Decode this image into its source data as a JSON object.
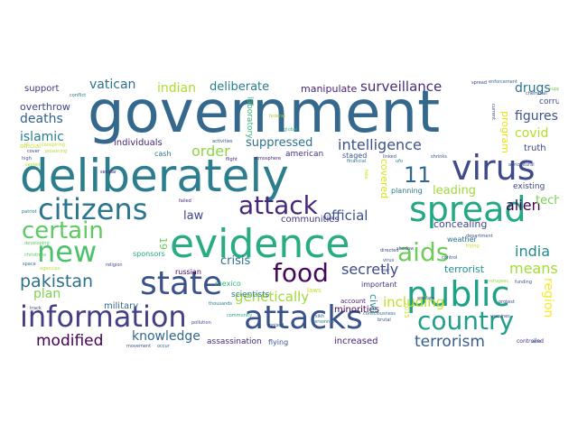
{
  "words": [
    {
      "text": "government",
      "color": "#35688d"
    },
    {
      "text": "deliberately",
      "color": "#2c7e8e"
    },
    {
      "text": "evidence",
      "color": "#27ad81"
    },
    {
      "text": "attacks",
      "color": "#3a528b"
    },
    {
      "text": "information",
      "color": "#433e85"
    },
    {
      "text": "state",
      "color": "#3b528b"
    },
    {
      "text": "public",
      "color": "#1fa187"
    },
    {
      "text": "virus",
      "color": "#3e4a89"
    },
    {
      "text": "spread",
      "color": "#22a884"
    },
    {
      "text": "citizens",
      "color": "#2a768e"
    },
    {
      "text": "attack",
      "color": "#482878"
    },
    {
      "text": "new",
      "color": "#4cc26c"
    },
    {
      "text": "certain",
      "color": "#5ec962"
    },
    {
      "text": "country",
      "color": "#1f9e89"
    },
    {
      "text": "food",
      "color": "#46085c"
    },
    {
      "text": "aids",
      "color": "#6ccd5a"
    },
    {
      "text": "11",
      "color": "#31688e"
    },
    {
      "text": "pakistan",
      "color": "#2d708e"
    },
    {
      "text": "terrorism",
      "color": "#365c8d"
    },
    {
      "text": "modified",
      "color": "#440154"
    },
    {
      "text": "knowledge",
      "color": "#31688e"
    },
    {
      "text": "genetically",
      "color": "#a0da39"
    },
    {
      "text": "secretly",
      "color": "#3e4989"
    },
    {
      "text": "india",
      "color": "#238a8d"
    },
    {
      "text": "means",
      "color": "#a5db36"
    },
    {
      "text": "alien",
      "color": "#440154"
    },
    {
      "text": "intelligence",
      "color": "#3b528b"
    },
    {
      "text": "surveillance",
      "color": "#472d7b"
    },
    {
      "text": "deliberate",
      "color": "#277f8e"
    },
    {
      "text": "vatican",
      "color": "#2c728e"
    },
    {
      "text": "indian",
      "color": "#addc30"
    },
    {
      "text": "manipulate",
      "color": "#482475"
    },
    {
      "text": "drugs",
      "color": "#2d708e"
    },
    {
      "text": "figures",
      "color": "#3b528b"
    },
    {
      "text": "covid",
      "color": "#b5de2b"
    },
    {
      "text": "deaths",
      "color": "#33638d"
    },
    {
      "text": "islamic",
      "color": "#287c8e"
    },
    {
      "text": "overthrow",
      "color": "#3e4989"
    },
    {
      "text": "support",
      "color": "#443a83"
    },
    {
      "text": "order",
      "color": "#8fd744"
    },
    {
      "text": "suppressed",
      "color": "#2c728e"
    },
    {
      "text": "individuals",
      "color": "#482576"
    },
    {
      "text": "official",
      "color": "#3b528b"
    },
    {
      "text": "law",
      "color": "#414487"
    },
    {
      "text": "crisis",
      "color": "#21918c"
    },
    {
      "text": "leading",
      "color": "#2c728e"
    },
    {
      "text": "concealing",
      "color": "#9fda3a"
    },
    {
      "text": "technology",
      "color": "#3f4788"
    },
    {
      "text": "plan",
      "color": "#7ad151"
    },
    {
      "text": "terrorist",
      "color": "#7fd34e"
    },
    {
      "text": "communities",
      "color": "#21908d"
    },
    {
      "text": "region",
      "color": "#453882"
    },
    {
      "text": "including",
      "color": "#fde725"
    },
    {
      "text": "19",
      "color": "#c2df23"
    },
    {
      "text": "military",
      "color": "#6ece58"
    },
    {
      "text": "assassination",
      "color": "#31688e"
    },
    {
      "text": "flying",
      "color": "#482979"
    },
    {
      "text": "increased",
      "color": "#3b528b"
    },
    {
      "text": "minorities",
      "color": "#482173"
    },
    {
      "text": "civil",
      "color": "#440154"
    },
    {
      "text": "truth",
      "color": "#21918c"
    },
    {
      "text": "corruption",
      "color": "#3f4788"
    },
    {
      "text": "program",
      "color": "#3e4a89"
    },
    {
      "text": "american",
      "color": "#e5e419"
    },
    {
      "text": "staged",
      "color": "#46327e"
    },
    {
      "text": "covered",
      "color": "#3b528b"
    },
    {
      "text": "planning",
      "color": "#d8e219"
    },
    {
      "text": "existing",
      "color": "#287c8e"
    },
    {
      "text": "russian",
      "color": "#3f4788"
    },
    {
      "text": "mexico",
      "color": "#440154"
    },
    {
      "text": "scientists",
      "color": "#35b779"
    },
    {
      "text": "sponsors",
      "color": "#2a788e"
    },
    {
      "text": "cash",
      "color": "#22a884"
    },
    {
      "text": "2015",
      "color": "#2a788e"
    },
    {
      "text": "laboratory",
      "color": "#c8e020"
    },
    {
      "text": "official",
      "color": "#35b779"
    },
    {
      "text": "important",
      "color": "#c0df25"
    },
    {
      "text": "laws",
      "color": "#46327e"
    },
    {
      "text": "weather",
      "color": "#bddf26"
    },
    {
      "text": "account",
      "color": "#2c728e"
    },
    {
      "text": "conspiring",
      "color": "#482071"
    },
    {
      "text": "poisoning",
      "color": "#cae11f"
    },
    {
      "text": "spread",
      "color": "#addc30"
    },
    {
      "text": "flight",
      "color": "#3e4989"
    },
    {
      "text": "atmosphere",
      "color": "#482878"
    },
    {
      "text": "activities",
      "color": "#482677"
    },
    {
      "text": "conflict",
      "color": "#3b528b"
    },
    {
      "text": "enforcement",
      "color": "#2a788e"
    },
    {
      "text": "current",
      "color": "#31688e"
    },
    {
      "text": "suppressing",
      "color": "#3e4a89"
    },
    {
      "text": "religion",
      "color": "#6ece58"
    },
    {
      "text": "directed",
      "color": "#3b528b"
    },
    {
      "text": "acts",
      "color": "#3e4989"
    },
    {
      "text": "agricultural",
      "color": "#26828e"
    },
    {
      "text": "department",
      "color": "#3b528b"
    },
    {
      "text": "trying",
      "color": "#3b528b"
    },
    {
      "text": "developing",
      "color": "#c8e020"
    },
    {
      "text": "failed",
      "color": "#5ec962"
    },
    {
      "text": "thousands",
      "color": "#482878"
    },
    {
      "text": "community",
      "color": "#2a788e"
    },
    {
      "text": "consciousness",
      "color": "#20a486"
    },
    {
      "text": "controlled",
      "color": "#2d708e"
    },
    {
      "text": "occur",
      "color": "#472d7b"
    },
    {
      "text": "movement",
      "color": "#31688e"
    },
    {
      "text": "track",
      "color": "#3b528b"
    },
    {
      "text": "secular",
      "color": "#3f4788"
    },
    {
      "text": "space",
      "color": "#482677"
    },
    {
      "text": "fake",
      "color": "#2c728e"
    },
    {
      "text": "financial",
      "color": "#cae11f"
    },
    {
      "text": "linked",
      "color": "#2a788e"
    },
    {
      "text": "ufo",
      "color": "#3b528b"
    },
    {
      "text": "patriot",
      "color": "#2a788e"
    },
    {
      "text": "high",
      "color": "#2a788e"
    },
    {
      "text": "cover",
      "color": "#3b528b"
    },
    {
      "text": "sealed",
      "color": "#3e4a89"
    },
    {
      "text": "christmas",
      "color": "#b5de2b"
    },
    {
      "text": "virus",
      "color": "#5ec962"
    },
    {
      "text": "war",
      "color": "#3b528b"
    },
    {
      "text": "sikh",
      "color": "#3b528b"
    },
    {
      "text": "brutal",
      "color": "#3b528b"
    },
    {
      "text": "refugees",
      "color": "#3b528b"
    },
    {
      "text": "vaccines",
      "color": "#a0da39"
    },
    {
      "text": "funding",
      "color": "#3e4989"
    },
    {
      "text": "global",
      "color": "#3b528b"
    },
    {
      "text": "poised",
      "color": "#35b779"
    },
    {
      "text": "shrinks",
      "color": "#3b528b"
    },
    {
      "text": "chemtrail",
      "color": "#3b528b"
    },
    {
      "text": "protest",
      "color": "#3b528b"
    },
    {
      "text": "warfare",
      "color": "#3e4a89"
    },
    {
      "text": "control",
      "color": "#3b528b"
    },
    {
      "text": "pollution",
      "color": "#3b528b"
    },
    {
      "text": "shadow",
      "color": "#3e4a89"
    },
    {
      "text": "agencies",
      "color": "#3b528b"
    },
    {
      "text": "federal",
      "color": "#b5de2b"
    },
    {
      "text": "personnel",
      "color": "#a0da39"
    },
    {
      "text": "involved",
      "color": "#2a788e"
    }
  ]
}
